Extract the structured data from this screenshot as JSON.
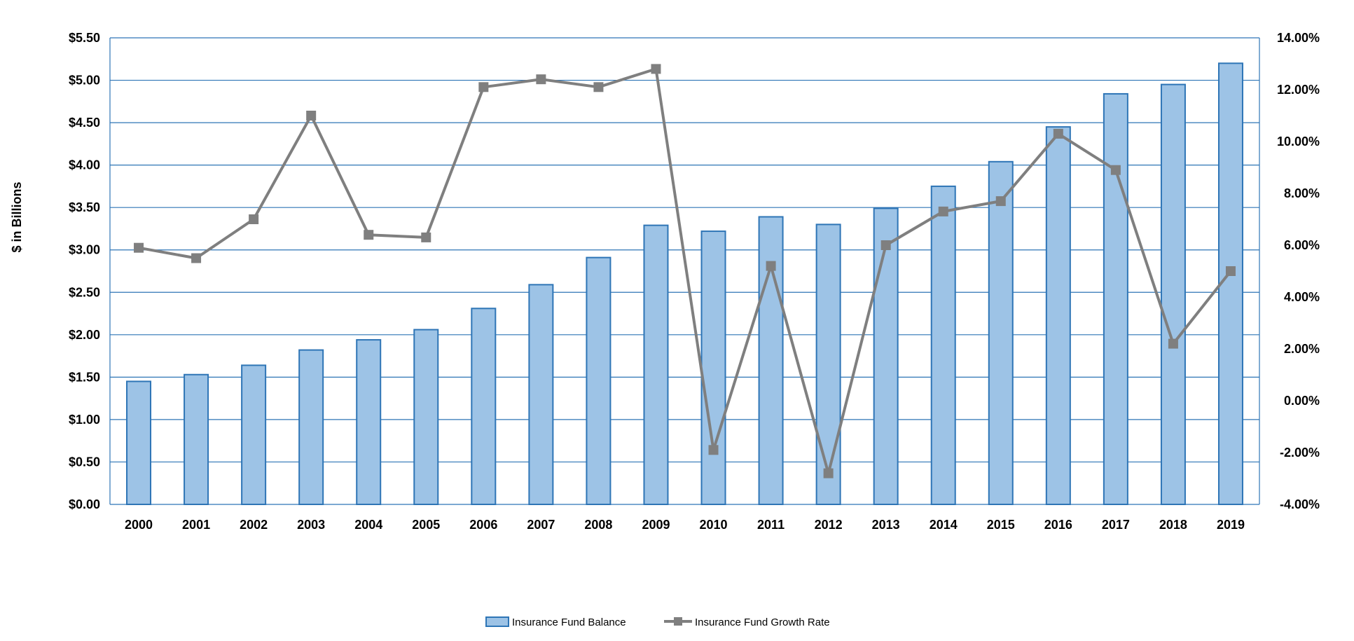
{
  "chart_data": {
    "type": "bar",
    "categories": [
      "2000",
      "2001",
      "2002",
      "2003",
      "2004",
      "2005",
      "2006",
      "2007",
      "2008",
      "2009",
      "2010",
      "2011",
      "2012",
      "2013",
      "2014",
      "2015",
      "2016",
      "2017",
      "2018",
      "2019"
    ],
    "series": [
      {
        "name": "Insurance Fund Balance",
        "type": "bar",
        "axis": "left",
        "values": [
          1.45,
          1.53,
          1.64,
          1.82,
          1.94,
          2.06,
          2.31,
          2.59,
          2.91,
          3.29,
          3.22,
          3.39,
          3.3,
          3.49,
          3.75,
          4.04,
          4.45,
          4.84,
          4.95,
          5.2
        ]
      },
      {
        "name": "Insurance Fund Growth Rate",
        "type": "line",
        "axis": "right",
        "values": [
          5.9,
          5.5,
          7.0,
          11.0,
          6.4,
          6.3,
          12.1,
          12.4,
          12.1,
          12.8,
          -1.9,
          5.2,
          -2.8,
          6.0,
          7.3,
          7.7,
          10.3,
          8.9,
          2.2,
          5.0
        ]
      }
    ],
    "ylabel": "$ in Billions",
    "ylim": [
      0,
      5.5
    ],
    "y_ticks": [
      "$0.00",
      "$0.50",
      "$1.00",
      "$1.50",
      "$2.00",
      "$2.50",
      "$3.00",
      "$3.50",
      "$4.00",
      "$4.50",
      "$5.00",
      "$5.50"
    ],
    "y2lim": [
      -4,
      14
    ],
    "y2_ticks": [
      "-4.00%",
      "-2.00%",
      "0.00%",
      "2.00%",
      "4.00%",
      "6.00%",
      "8.00%",
      "10.00%",
      "12.00%",
      "14.00%"
    ],
    "grid": true,
    "legend_position": "bottom-center",
    "colors": {
      "bar_fill": "#9dc3e6",
      "bar_stroke": "#2e75b6",
      "line": "#7f7f7f",
      "marker": "#7f7f7f",
      "grid": "#2e75b6"
    }
  }
}
